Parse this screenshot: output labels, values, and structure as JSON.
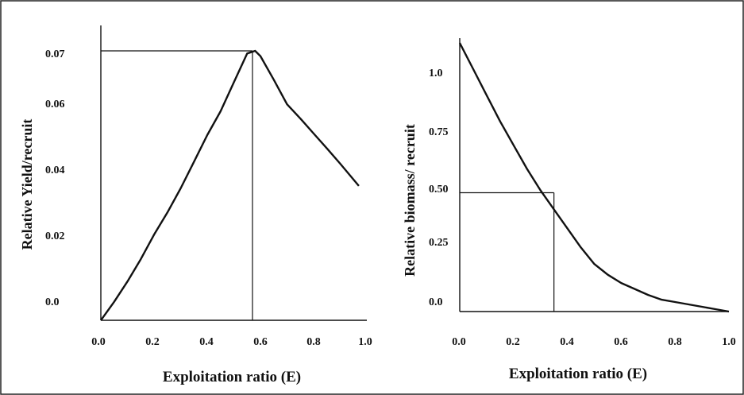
{
  "chart_data": [
    {
      "type": "line",
      "xlabel": "Exploitation ratio (E)",
      "ylabel": "Relative Yield/recruit",
      "x_ticks": [
        "0.0",
        "0.2",
        "0.4",
        "0.6",
        "0.8",
        "1.0"
      ],
      "y_ticks": [
        "0.0",
        "0.02",
        "0.04",
        "0.06",
        "0.07"
      ],
      "xlim": [
        0,
        1.0
      ],
      "y_scale": "categorical (tick labels unevenly spaced)",
      "series": [
        {
          "x": [
            0.0,
            0.05,
            0.1,
            0.15,
            0.2,
            0.25,
            0.3,
            0.35,
            0.4,
            0.45,
            0.5,
            0.55,
            0.58,
            0.6,
            0.65,
            0.7,
            0.75,
            0.8,
            0.85,
            0.9,
            0.97
          ],
          "y": [
            0.0,
            0.0044,
            0.0092,
            0.0145,
            0.0204,
            0.0268,
            0.0338,
            0.0416,
            0.05,
            0.0575,
            0.064,
            0.0695,
            0.0705,
            0.069,
            0.0645,
            0.0597,
            0.0552,
            0.0505,
            0.0458,
            0.041,
            0.0345
          ]
        }
      ],
      "reference_lines": {
        "x": 0.57,
        "y": 0.07
      }
    },
    {
      "type": "line",
      "xlabel": "Exploitation ratio (E)",
      "ylabel": "Relative biomass/ recruit",
      "x_ticks": [
        "0.0",
        "0.2",
        "0.4",
        "0.6",
        "0.8",
        "1.0"
      ],
      "y_ticks": [
        "0.0",
        "0.25",
        "0.50",
        "0.75",
        "1.0"
      ],
      "xlim": [
        0,
        1.0
      ],
      "ylim": [
        0,
        1.1
      ],
      "series": [
        {
          "x": [
            0.0,
            0.05,
            0.1,
            0.15,
            0.2,
            0.25,
            0.3,
            0.35,
            0.4,
            0.45,
            0.5,
            0.55,
            0.6,
            0.65,
            0.7,
            0.75,
            0.8,
            0.85,
            0.9,
            0.95,
            1.0
          ],
          "y": [
            1.13,
            1.02,
            0.91,
            0.8,
            0.7,
            0.6,
            0.51,
            0.43,
            0.35,
            0.27,
            0.2,
            0.155,
            0.12,
            0.095,
            0.07,
            0.05,
            0.04,
            0.03,
            0.02,
            0.01,
            0.0
          ]
        }
      ],
      "reference_lines": {
        "x": 0.35,
        "y": 0.5
      }
    }
  ]
}
